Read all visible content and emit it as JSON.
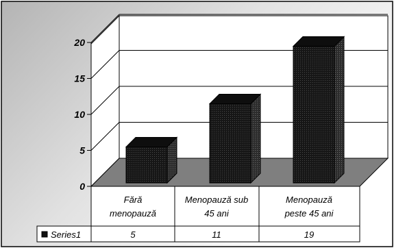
{
  "chart_data": {
    "type": "bar",
    "style": "3d-column with data table",
    "categories": [
      [
        "Fără",
        "menopauză"
      ],
      [
        "Menopauză sub",
        "45 ani"
      ],
      [
        "Menopauză",
        "peste 45 ani"
      ]
    ],
    "series": [
      {
        "name": "Series1",
        "values": [
          5,
          11,
          19
        ]
      }
    ],
    "yticks": [
      "0",
      "5",
      "10",
      "15",
      "20"
    ],
    "ylim": [
      0,
      20
    ],
    "grid": true,
    "data_table": true,
    "colors": {
      "bar": "#111111",
      "plot_wall": "#ffffff",
      "floor": "#7f7f7f",
      "background_gradient": [
        "#bfbfbf",
        "#ffffff"
      ]
    }
  }
}
